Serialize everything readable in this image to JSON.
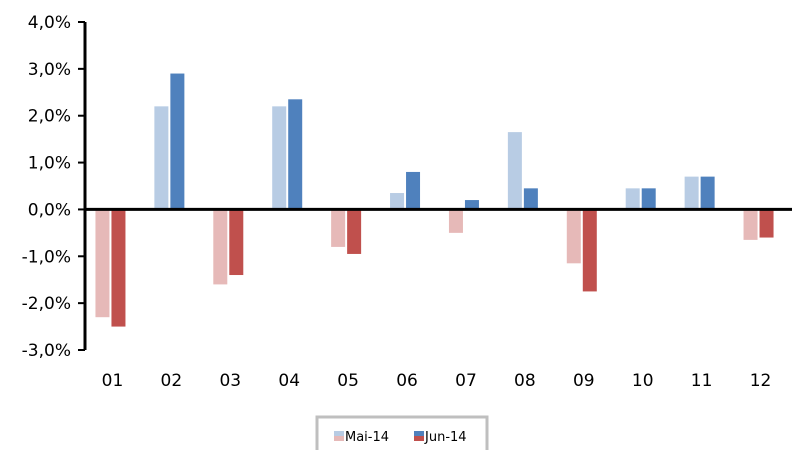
{
  "chart_data": {
    "type": "bar",
    "categories": [
      "01",
      "02",
      "03",
      "04",
      "05",
      "06",
      "07",
      "08",
      "09",
      "10",
      "11",
      "12"
    ],
    "series": [
      {
        "name": "Mai-14",
        "values": [
          -2.3,
          2.2,
          -1.6,
          2.2,
          -0.8,
          0.35,
          -0.5,
          1.65,
          -1.15,
          0.45,
          0.7,
          -0.65
        ],
        "color_positive": "#b8cce4",
        "color_negative": "#e6b9b8"
      },
      {
        "name": "Jun-14",
        "values": [
          -2.5,
          2.9,
          -1.4,
          2.35,
          -0.95,
          0.8,
          0.2,
          0.45,
          -1.75,
          0.45,
          0.7,
          -0.6
        ],
        "color_positive": "#4f81bd",
        "color_negative": "#c0504d"
      }
    ],
    "ylim": [
      -3.0,
      4.0
    ],
    "yticks": [
      4.0,
      3.0,
      2.0,
      1.0,
      0.0,
      -1.0,
      -2.0,
      -3.0
    ],
    "ytick_labels": [
      "4,0%",
      "3,0%",
      "2,0%",
      "1,0%",
      "0,0%",
      "-1,0%",
      "-2,0%",
      "-3,0%"
    ],
    "title": "",
    "xlabel": "",
    "ylabel": "",
    "grid": false,
    "legend_position": "bottom-center"
  }
}
